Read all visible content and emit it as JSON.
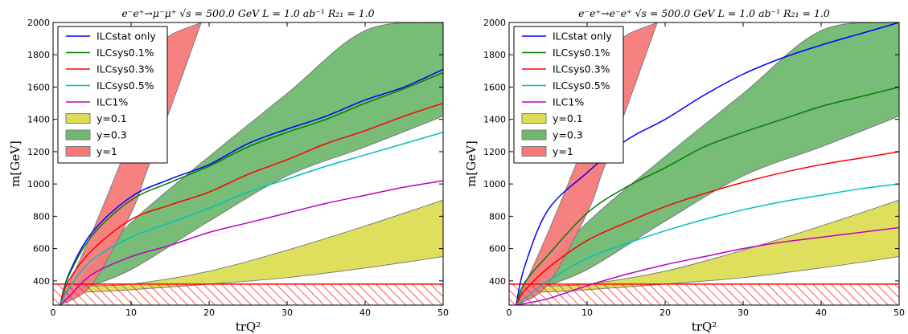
{
  "chart_data": [
    {
      "type": "line",
      "title": "e⁻e⁺→μ⁻μ⁺ √s = 500.0 GeV L = 1.0 ab⁻¹ R₂₁ = 1.0",
      "xlabel": "trQ²",
      "ylabel": "m[GeV]",
      "xlim": [
        0,
        50
      ],
      "ylim": [
        250,
        2000
      ],
      "xticks": [
        0,
        10,
        20,
        30,
        40,
        50
      ],
      "yticks": [
        400,
        600,
        800,
        1000,
        1200,
        1400,
        1600,
        1800,
        2000
      ],
      "grid": false,
      "legend_position": "top-left",
      "x": [
        0.9,
        2,
        5,
        10,
        15,
        20,
        25,
        30,
        35,
        40,
        45,
        50
      ],
      "series": [
        {
          "name": "ILCstat only",
          "color": "#0000ff",
          "values": [
            250,
            440,
            700,
            920,
            1030,
            1120,
            1250,
            1340,
            1420,
            1520,
            1600,
            1710
          ]
        },
        {
          "name": "ILCsys0.1%",
          "color": "#008000",
          "values": [
            250,
            430,
            680,
            900,
            1010,
            1110,
            1230,
            1320,
            1400,
            1500,
            1590,
            1690
          ]
        },
        {
          "name": "ILCsys0.3%",
          "color": "#ff0000",
          "values": [
            250,
            400,
            590,
            780,
            870,
            950,
            1060,
            1150,
            1250,
            1330,
            1420,
            1500
          ]
        },
        {
          "name": "ILCsys0.5%",
          "color": "#00bfbf",
          "values": [
            250,
            350,
            530,
            670,
            760,
            850,
            950,
            1030,
            1110,
            1180,
            1250,
            1320
          ]
        },
        {
          "name": "ILC1%",
          "color": "#bf00bf",
          "values": [
            250,
            300,
            440,
            550,
            620,
            700,
            760,
            820,
            880,
            930,
            980,
            1020
          ]
        }
      ],
      "bands": [
        {
          "name": "y=0.1",
          "color": "#dddd55",
          "x": [
            4,
            10,
            20,
            30,
            40,
            50
          ],
          "lower": [
            330,
            345,
            380,
            420,
            480,
            550
          ],
          "upper": [
            370,
            380,
            460,
            590,
            740,
            900
          ]
        },
        {
          "name": "y=0.3",
          "color": "#70b870",
          "x": [
            3,
            10,
            20,
            30,
            40,
            50
          ],
          "lower": [
            340,
            470,
            770,
            1050,
            1230,
            1420
          ],
          "upper": [
            380,
            760,
            1170,
            1560,
            1950,
            2000
          ]
        },
        {
          "name": "y=1",
          "color": "#f77a7a",
          "x": [
            0.9,
            5,
            10,
            12,
            14,
            19
          ],
          "lower": [
            250,
            380,
            820,
            1080,
            1330,
            2000
          ],
          "upper": [
            260,
            700,
            1300,
            1600,
            1880,
            2000
          ]
        }
      ],
      "excluded_region": {
        "y_max": 380,
        "style": "red-hatched"
      }
    },
    {
      "type": "line",
      "title": "e⁻e⁺→e⁻e⁺ √s = 500.0 GeV L = 1.0 ab⁻¹ R₂₁ = 1.0",
      "xlabel": "trQ²",
      "ylabel": "m[GeV]",
      "xlim": [
        0,
        50
      ],
      "ylim": [
        250,
        2000
      ],
      "xticks": [
        0,
        10,
        20,
        30,
        40,
        50
      ],
      "yticks": [
        400,
        600,
        800,
        1000,
        1200,
        1400,
        1600,
        1800,
        2000
      ],
      "grid": false,
      "legend_position": "top-left",
      "x": [
        0.9,
        2,
        5,
        10,
        15,
        20,
        25,
        30,
        35,
        40,
        45,
        50
      ],
      "series": [
        {
          "name": "ILCstat only",
          "color": "#0000ff",
          "values": [
            250,
            490,
            840,
            1070,
            1270,
            1400,
            1550,
            1680,
            1780,
            1860,
            1930,
            2000
          ]
        },
        {
          "name": "ILCsys0.1%",
          "color": "#008000",
          "values": [
            250,
            390,
            560,
            820,
            980,
            1100,
            1230,
            1320,
            1400,
            1480,
            1540,
            1600
          ]
        },
        {
          "name": "ILCsys0.3%",
          "color": "#ff0000",
          "values": [
            250,
            340,
            480,
            650,
            760,
            860,
            940,
            1010,
            1070,
            1120,
            1160,
            1200
          ]
        },
        {
          "name": "ILCsys0.5%",
          "color": "#00bfbf",
          "values": [
            250,
            290,
            400,
            540,
            630,
            710,
            780,
            840,
            890,
            930,
            970,
            1000
          ]
        },
        {
          "name": "ILC1%",
          "color": "#bf00bf",
          "values": [
            250,
            260,
            290,
            370,
            440,
            500,
            550,
            600,
            640,
            670,
            700,
            730
          ]
        }
      ],
      "bands": [
        {
          "name": "y=0.1",
          "color": "#dddd55",
          "x": [
            4,
            10,
            20,
            30,
            40,
            50
          ],
          "lower": [
            330,
            345,
            380,
            420,
            480,
            550
          ],
          "upper": [
            370,
            380,
            460,
            590,
            740,
            900
          ]
        },
        {
          "name": "y=0.3",
          "color": "#70b870",
          "x": [
            3,
            10,
            20,
            30,
            40,
            50
          ],
          "lower": [
            340,
            470,
            770,
            1050,
            1230,
            1420
          ],
          "upper": [
            380,
            760,
            1170,
            1560,
            1950,
            2000
          ]
        },
        {
          "name": "y=1",
          "color": "#f77a7a",
          "x": [
            0.9,
            5,
            10,
            12,
            14,
            19
          ],
          "lower": [
            250,
            380,
            820,
            1080,
            1330,
            2000
          ],
          "upper": [
            260,
            700,
            1300,
            1600,
            1880,
            2000
          ]
        }
      ],
      "excluded_region": {
        "y_max": 380,
        "style": "red-hatched"
      }
    }
  ],
  "legend_entries": [
    {
      "label": "ILCstat only",
      "kind": "line",
      "color": "#0000ff"
    },
    {
      "label": "ILCsys0.1%",
      "kind": "line",
      "color": "#008000"
    },
    {
      "label": "ILCsys0.3%",
      "kind": "line",
      "color": "#ff0000"
    },
    {
      "label": "ILCsys0.5%",
      "kind": "line",
      "color": "#00bfbf"
    },
    {
      "label": "ILC1%",
      "kind": "line",
      "color": "#bf00bf"
    },
    {
      "label": "y=0.1",
      "kind": "patch",
      "color": "#dddd55"
    },
    {
      "label": "y=0.3",
      "kind": "patch",
      "color": "#70b870"
    },
    {
      "label": "y=1",
      "kind": "patch",
      "color": "#f77a7a"
    }
  ]
}
